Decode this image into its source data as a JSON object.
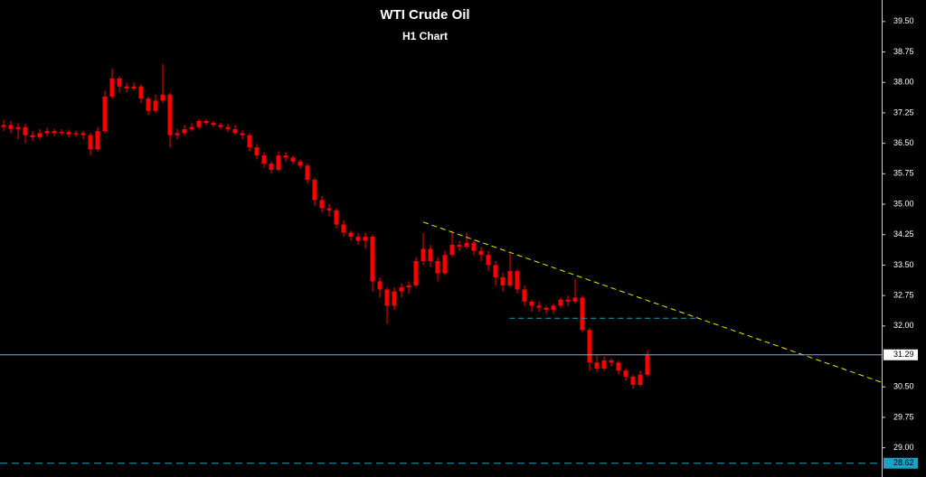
{
  "chart_data": {
    "type": "candlestick",
    "title": "WTI Crude Oil",
    "subtitle": "H1 Chart",
    "color": "#ff0000",
    "ylim": [
      28.28,
      40.03
    ],
    "yticks": [
      {
        "value": 39.5,
        "label": "39.50"
      },
      {
        "value": 38.75,
        "label": "38.75"
      },
      {
        "value": 38,
        "label": "38.00"
      },
      {
        "value": 37.25,
        "label": "37.25"
      },
      {
        "value": 36.5,
        "label": "36.50"
      },
      {
        "value": 35.75,
        "label": "35.75"
      },
      {
        "value": 35,
        "label": "35.00"
      },
      {
        "value": 34.25,
        "label": "34.25"
      },
      {
        "value": 33.5,
        "label": "33.50"
      },
      {
        "value": 32.75,
        "label": "32.75"
      },
      {
        "value": 32,
        "label": "32.00"
      },
      {
        "value": 30.5,
        "label": "30.50"
      },
      {
        "value": 29.75,
        "label": "29.75"
      },
      {
        "value": 29,
        "label": "29.00"
      }
    ],
    "open": [
      36.9,
      36.95,
      36.85,
      36.9,
      36.7,
      36.65,
      36.75,
      36.8,
      36.75,
      36.78,
      36.72,
      36.75,
      36.7,
      36.35,
      36.8,
      37.65,
      38.1,
      37.9,
      37.85,
      37.9,
      37.6,
      37.3,
      37.55,
      37.7,
      36.7,
      36.75,
      36.85,
      36.9,
      37.05,
      37.0,
      36.95,
      36.9,
      36.85,
      36.75,
      36.7,
      36.4,
      36.2,
      36.0,
      35.85,
      36.2,
      36.15,
      36.05,
      35.95,
      35.6,
      35.1,
      34.9,
      34.85,
      34.5,
      34.3,
      34.2,
      34.1,
      34.2,
      33.1,
      32.9,
      32.5,
      32.85,
      32.95,
      33.0,
      33.6,
      33.9,
      33.6,
      33.3,
      33.75,
      34.0,
      33.95,
      34.05,
      33.85,
      33.75,
      33.5,
      33.2,
      33.0,
      33.35,
      32.9,
      32.6,
      32.5,
      32.45,
      32.4,
      32.5,
      32.65,
      32.6,
      32.7,
      31.9,
      31.1,
      30.95,
      31.15,
      31.1,
      30.9,
      30.75,
      30.55,
      30.8
    ],
    "high": [
      37.08,
      37.05,
      37.0,
      36.98,
      36.8,
      36.85,
      36.88,
      36.86,
      36.85,
      36.84,
      36.82,
      36.8,
      36.76,
      36.9,
      37.8,
      38.35,
      38.15,
      38.0,
      38.0,
      37.95,
      37.65,
      37.7,
      38.45,
      37.75,
      36.85,
      36.95,
      37.0,
      37.1,
      37.1,
      37.05,
      37.0,
      36.98,
      36.95,
      36.82,
      36.75,
      36.48,
      36.28,
      36.05,
      36.3,
      36.28,
      36.2,
      36.1,
      36.0,
      35.65,
      35.2,
      35.0,
      34.9,
      34.6,
      34.35,
      34.28,
      34.3,
      34.25,
      33.2,
      32.95,
      32.95,
      33.05,
      33.1,
      33.7,
      34.3,
      34.0,
      33.7,
      33.85,
      34.35,
      34.1,
      34.3,
      34.1,
      33.95,
      33.85,
      33.6,
      33.3,
      33.8,
      33.4,
      33.0,
      32.65,
      32.6,
      32.5,
      32.55,
      32.7,
      32.75,
      33.15,
      32.75,
      31.95,
      31.3,
      31.25,
      31.2,
      31.15,
      30.95,
      30.8,
      30.9,
      31.4
    ],
    "low": [
      36.8,
      36.75,
      36.6,
      36.5,
      36.55,
      36.6,
      36.68,
      36.68,
      36.7,
      36.65,
      36.66,
      36.6,
      36.2,
      36.3,
      36.75,
      37.6,
      37.75,
      37.75,
      37.8,
      37.5,
      37.2,
      37.25,
      37.5,
      36.4,
      36.6,
      36.7,
      36.8,
      36.85,
      36.95,
      36.9,
      36.85,
      36.78,
      36.7,
      36.6,
      36.3,
      36.1,
      35.9,
      35.75,
      35.8,
      36.05,
      35.98,
      35.88,
      35.5,
      34.95,
      34.8,
      34.7,
      34.4,
      34.2,
      34.1,
      34.0,
      33.9,
      32.85,
      32.7,
      32.05,
      32.4,
      32.7,
      32.8,
      32.95,
      33.5,
      33.45,
      33.1,
      33.25,
      33.7,
      33.85,
      33.9,
      33.75,
      33.6,
      33.35,
      33.0,
      32.85,
      32.95,
      32.8,
      32.5,
      32.35,
      32.35,
      32.3,
      32.3,
      32.45,
      32.5,
      32.55,
      31.85,
      30.9,
      30.85,
      30.9,
      31.0,
      30.8,
      30.65,
      30.45,
      30.5,
      30.75
    ],
    "close": [
      36.95,
      36.85,
      36.9,
      36.7,
      36.65,
      36.75,
      36.8,
      36.75,
      36.78,
      36.72,
      36.75,
      36.7,
      36.35,
      36.8,
      37.65,
      38.1,
      37.9,
      37.85,
      37.9,
      37.6,
      37.3,
      37.55,
      37.7,
      36.7,
      36.75,
      36.85,
      36.9,
      37.05,
      37.0,
      36.95,
      36.9,
      36.85,
      36.75,
      36.7,
      36.4,
      36.2,
      36.0,
      35.85,
      36.2,
      36.15,
      36.05,
      35.95,
      35.6,
      35.1,
      34.9,
      34.85,
      34.5,
      34.3,
      34.2,
      34.1,
      34.2,
      33.1,
      32.9,
      32.5,
      32.85,
      32.95,
      33.0,
      33.6,
      33.9,
      33.6,
      33.3,
      33.75,
      34.0,
      33.95,
      34.05,
      33.85,
      33.75,
      33.5,
      33.2,
      33.0,
      33.35,
      32.9,
      32.6,
      32.5,
      32.45,
      32.4,
      32.5,
      32.65,
      32.6,
      32.7,
      31.9,
      31.1,
      30.95,
      31.15,
      31.1,
      30.9,
      30.75,
      30.55,
      30.8,
      31.29
    ],
    "current_price": 31.29,
    "current_price_color": "#8fa6b5",
    "support_level": 28.62,
    "support_color": "#1e9fc4",
    "lines": [
      {
        "color": "#e8e800",
        "x": [
          58,
          121.4
        ],
        "y": [
          34.56,
          30.61
        ]
      },
      {
        "color": "#1e9fc4",
        "x": [
          69.9,
          95.75
        ],
        "y": [
          32.19,
          32.19
        ]
      }
    ]
  }
}
